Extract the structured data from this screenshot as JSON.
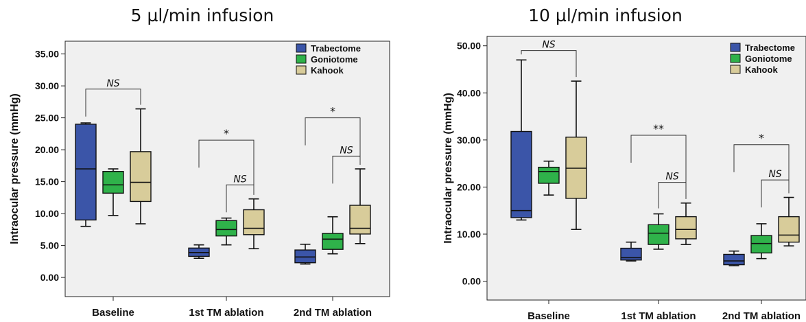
{
  "chart_data": [
    {
      "type": "box",
      "title": "5 µl/min infusion",
      "ylabel": "Intraocular pressure (mmHg)",
      "ylim": [
        -3,
        37
      ],
      "yticks": [
        "0.00",
        "5.00",
        "10.00",
        "15.00",
        "20.00",
        "25.00",
        "30.00",
        "35.00"
      ],
      "categories": [
        "Baseline",
        "1st TM ablation",
        "2nd TM ablation"
      ],
      "series": [
        {
          "name": "Trabectome",
          "color": "#3b55a8",
          "boxes": [
            {
              "min": 8.0,
              "q1": 9.0,
              "median": 17.0,
              "q3": 24.0,
              "max": 24.2
            },
            {
              "min": 3.0,
              "q1": 3.3,
              "median": 3.9,
              "q3": 4.6,
              "max": 5.1
            },
            {
              "min": 2.1,
              "q1": 2.3,
              "median": 3.2,
              "q3": 4.3,
              "max": 5.2
            }
          ]
        },
        {
          "name": "Goniotome",
          "color": "#2fb24a",
          "boxes": [
            {
              "min": 9.7,
              "q1": 13.2,
              "median": 14.5,
              "q3": 16.6,
              "max": 17.0
            },
            {
              "min": 5.1,
              "q1": 6.5,
              "median": 7.5,
              "q3": 8.9,
              "max": 9.3
            },
            {
              "min": 3.7,
              "q1": 4.4,
              "median": 6.0,
              "q3": 6.9,
              "max": 9.5
            }
          ]
        },
        {
          "name": "Kahook",
          "color": "#d8cc9a",
          "boxes": [
            {
              "min": 8.4,
              "q1": 11.9,
              "median": 14.9,
              "q3": 19.7,
              "max": 26.4
            },
            {
              "min": 4.5,
              "q1": 6.7,
              "median": 7.7,
              "q3": 10.6,
              "max": 12.3
            },
            {
              "min": 5.3,
              "q1": 6.8,
              "median": 7.7,
              "q3": 11.3,
              "max": 17.0
            }
          ]
        }
      ],
      "legend": [
        "Trabectome",
        "Goniotome",
        "Kahook"
      ],
      "legend_position": "top-right",
      "annotations": [
        {
          "from": [
            0,
            0
          ],
          "to": [
            0,
            2
          ],
          "level": 29.5,
          "label": "NS",
          "italic": true
        },
        {
          "from": [
            1,
            0
          ],
          "to": [
            1,
            2
          ],
          "level": 21.5,
          "label": "*",
          "italic": false
        },
        {
          "from": [
            1,
            1
          ],
          "to": [
            1,
            2
          ],
          "level": 14.5,
          "label": "NS",
          "italic": true
        },
        {
          "from": [
            2,
            0
          ],
          "to": [
            2,
            2
          ],
          "level": 25.0,
          "label": "*",
          "italic": false
        },
        {
          "from": [
            2,
            1
          ],
          "to": [
            2,
            2
          ],
          "level": 19.0,
          "label": "NS",
          "italic": true
        }
      ]
    },
    {
      "type": "box",
      "title": "10 µl/min infusion",
      "ylabel": "Intraocular pressure (mmHg)",
      "ylim": [
        -4,
        52
      ],
      "yticks": [
        "0.00",
        "10.00",
        "20.00",
        "30.00",
        "40.00",
        "50.00"
      ],
      "categories": [
        "Baseline",
        "1st TM ablation",
        "2nd TM ablation"
      ],
      "series": [
        {
          "name": "Trabectome",
          "color": "#3b55a8",
          "boxes": [
            {
              "min": 13.0,
              "q1": 13.5,
              "median": 15.0,
              "q3": 31.8,
              "max": 47.0
            },
            {
              "min": 4.3,
              "q1": 4.5,
              "median": 5.0,
              "q3": 7.0,
              "max": 8.3
            },
            {
              "min": 3.3,
              "q1": 3.5,
              "median": 4.3,
              "q3": 5.7,
              "max": 6.4
            }
          ]
        },
        {
          "name": "Goniotome",
          "color": "#2fb24a",
          "boxes": [
            {
              "min": 18.3,
              "q1": 20.8,
              "median": 23.3,
              "q3": 24.2,
              "max": 25.5
            },
            {
              "min": 6.8,
              "q1": 7.8,
              "median": 10.2,
              "q3": 12.0,
              "max": 14.3
            },
            {
              "min": 4.8,
              "q1": 6.0,
              "median": 8.0,
              "q3": 9.7,
              "max": 12.2
            }
          ]
        },
        {
          "name": "Kahook",
          "color": "#d8cc9a",
          "boxes": [
            {
              "min": 11.0,
              "q1": 17.6,
              "median": 24.0,
              "q3": 30.6,
              "max": 42.5
            },
            {
              "min": 7.8,
              "q1": 9.0,
              "median": 11.0,
              "q3": 13.7,
              "max": 16.6
            },
            {
              "min": 7.5,
              "q1": 8.3,
              "median": 9.8,
              "q3": 13.7,
              "max": 17.8
            }
          ]
        }
      ],
      "legend": [
        "Trabectome",
        "Goniotome",
        "Kahook"
      ],
      "legend_position": "top-right",
      "annotations": [
        {
          "from": [
            0,
            0
          ],
          "to": [
            0,
            2
          ],
          "level": 49.0,
          "label": "NS",
          "italic": true
        },
        {
          "from": [
            1,
            0
          ],
          "to": [
            1,
            2
          ],
          "level": 31.0,
          "label": "**",
          "italic": false
        },
        {
          "from": [
            1,
            1
          ],
          "to": [
            1,
            2
          ],
          "level": 21.0,
          "label": "NS",
          "italic": true
        },
        {
          "from": [
            2,
            0
          ],
          "to": [
            2,
            2
          ],
          "level": 29.0,
          "label": "*",
          "italic": false
        },
        {
          "from": [
            2,
            1
          ],
          "to": [
            2,
            2
          ],
          "level": 21.5,
          "label": "NS",
          "italic": true
        }
      ]
    }
  ]
}
